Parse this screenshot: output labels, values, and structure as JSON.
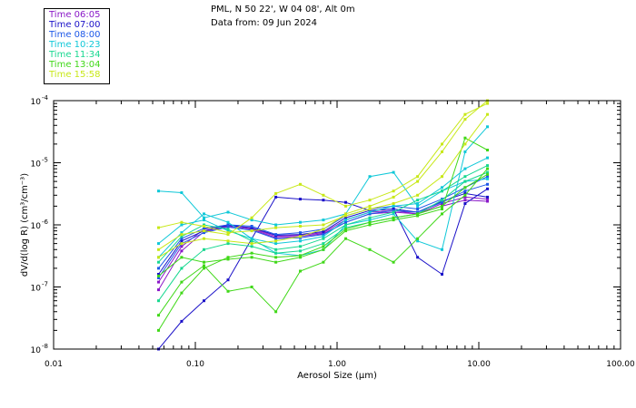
{
  "header": {
    "line1": "PML, N 50 22', W 04 08', Alt 0m",
    "line2": "Data from: 09 Jun 2024"
  },
  "legend": [
    {
      "label": "Time 06:05",
      "color": "#8a18c8"
    },
    {
      "label": "Time 07:00",
      "color": "#1a10c8"
    },
    {
      "label": "Time 08:00",
      "color": "#1e58e8"
    },
    {
      "label": "Time 10:23",
      "color": "#10c8d8"
    },
    {
      "label": "Time 11:34",
      "color": "#18d890"
    },
    {
      "label": "Time 13:04",
      "color": "#40d818"
    },
    {
      "label": "Time 15:58",
      "color": "#c8e818"
    }
  ],
  "chart_data": {
    "type": "line",
    "xlabel": "Aerosol Size (μm)",
    "ylabel": "dV/d(log R) (cm³/cm⁻³)",
    "xscale": "log",
    "yscale": "log",
    "xlim": [
      0.01,
      100
    ],
    "ylim": [
      1e-08,
      0.0001
    ],
    "xticks": [
      {
        "value": 0.01,
        "label": "0.01"
      },
      {
        "value": 0.1,
        "label": "0.10"
      },
      {
        "value": 1,
        "label": "1.00"
      },
      {
        "value": 10,
        "label": "10.00"
      },
      {
        "value": 100,
        "label": "100.00"
      }
    ],
    "yticks": [
      {
        "value": 1e-08,
        "mantissa": "10",
        "exp": "-8"
      },
      {
        "value": 1e-07,
        "mantissa": "10",
        "exp": "-7"
      },
      {
        "value": 1e-06,
        "mantissa": "10",
        "exp": "-6"
      },
      {
        "value": 1e-05,
        "mantissa": "10",
        "exp": "-5"
      },
      {
        "value": 0.0001,
        "mantissa": "10",
        "exp": "-4"
      }
    ],
    "x": [
      0.055,
      0.08,
      0.115,
      0.17,
      0.25,
      0.37,
      0.55,
      0.8,
      1.15,
      1.7,
      2.5,
      3.7,
      5.5,
      8.0,
      11.5
    ],
    "series": [
      {
        "color": "#8a18c8",
        "y": [
          1.2e-07,
          4.5e-07,
          8.5e-07,
          1e-06,
          8.8e-07,
          6.5e-07,
          6.8e-07,
          7.5e-07,
          1.2e-06,
          1.6e-06,
          1.7e-06,
          1.5e-06,
          2.2e-06,
          2.8e-06,
          2.6e-06
        ]
      },
      {
        "color": "#8a18c8",
        "y": [
          9e-08,
          3.8e-07,
          7.8e-07,
          9.5e-07,
          8.5e-07,
          6.2e-07,
          6.5e-07,
          7.2e-07,
          1.1e-06,
          1.5e-06,
          1.6e-06,
          1.5e-06,
          2e-06,
          2.5e-06,
          2.4e-06
        ]
      },
      {
        "color": "#1a10c8",
        "y": [
          1e-08,
          2.8e-08,
          6e-08,
          1.3e-07,
          6e-07,
          2.8e-06,
          2.6e-06,
          2.5e-06,
          2.3e-06,
          1.7e-06,
          1.8e-06,
          3e-07,
          1.6e-07,
          2.2e-06,
          3.8e-06
        ]
      },
      {
        "color": "#1a10c8",
        "y": [
          1.6e-07,
          5.5e-07,
          8e-07,
          9.8e-07,
          9e-07,
          6.8e-07,
          7e-07,
          7.8e-07,
          1.3e-06,
          1.7e-06,
          1.8e-06,
          1.6e-06,
          2.4e-06,
          3.2e-06,
          2.8e-06
        ]
      },
      {
        "color": "#1e58e8",
        "y": [
          1.4e-07,
          5e-07,
          7.5e-07,
          9.2e-07,
          8.2e-07,
          6e-07,
          6.2e-07,
          7e-07,
          1.1e-06,
          1.5e-06,
          1.7e-06,
          1.6e-06,
          2.3e-06,
          3.5e-06,
          4.5e-06
        ]
      },
      {
        "color": "#1e58e8",
        "y": [
          2e-07,
          6e-07,
          8.8e-07,
          1e-06,
          9.5e-07,
          7e-07,
          7.5e-07,
          8.5e-07,
          1.4e-06,
          1.8e-06,
          2e-06,
          1.8e-06,
          2.6e-06,
          4e-06,
          6e-06
        ]
      },
      {
        "color": "#10c8d8",
        "y": [
          3.5e-06,
          3.3e-06,
          1.3e-06,
          1.6e-06,
          1.2e-06,
          1e-06,
          1.1e-06,
          1.2e-06,
          1.5e-06,
          6e-06,
          7e-06,
          2e-06,
          3.5e-06,
          5e-06,
          5.5e-06
        ]
      },
      {
        "color": "#10c8d8",
        "y": [
          3e-07,
          7.5e-07,
          1.5e-06,
          1.1e-06,
          6e-07,
          3.5e-07,
          3.2e-07,
          4e-07,
          1e-06,
          1.2e-06,
          1.5e-06,
          5.5e-07,
          4e-07,
          1.5e-05,
          3.8e-05
        ]
      },
      {
        "color": "#10c8d8",
        "y": [
          5e-07,
          1e-06,
          1.2e-06,
          8e-07,
          6e-07,
          5e-07,
          5.5e-07,
          6.5e-07,
          1.2e-06,
          1.6e-06,
          2e-06,
          2.2e-06,
          4e-06,
          8e-06,
          1.2e-05
        ]
      },
      {
        "color": "#18d890",
        "y": [
          2.5e-07,
          6.5e-07,
          1e-06,
          8.5e-07,
          5.5e-07,
          4e-07,
          4.5e-07,
          6e-07,
          1e-06,
          1.3e-06,
          1.6e-06,
          2.5e-06,
          3.5e-06,
          6e-06,
          9e-06
        ]
      },
      {
        "color": "#18d890",
        "y": [
          6e-08,
          2e-07,
          4e-07,
          5e-07,
          4.5e-07,
          3.5e-07,
          3.8e-07,
          5e-07,
          9e-07,
          1.1e-06,
          1.3e-06,
          1.5e-06,
          2.5e-06,
          5e-06,
          7e-06
        ]
      },
      {
        "color": "#40d818",
        "y": [
          3.5e-08,
          1.2e-07,
          2.2e-07,
          8.5e-08,
          1e-07,
          4e-08,
          1.8e-07,
          2.5e-07,
          6e-07,
          4e-07,
          2.5e-07,
          6e-07,
          1.5e-06,
          3e-06,
          8e-06
        ]
      },
      {
        "color": "#40d818",
        "y": [
          1.5e-07,
          3e-07,
          2.5e-07,
          2.8e-07,
          3e-07,
          2.5e-07,
          3e-07,
          4e-07,
          8e-07,
          1e-06,
          1.2e-06,
          1.4e-06,
          1.8e-06,
          2.5e-05,
          1.6e-05
        ]
      },
      {
        "color": "#40d818",
        "y": [
          2e-08,
          8e-08,
          2e-07,
          3e-07,
          3.5e-07,
          3e-07,
          3.2e-07,
          4.5e-07,
          8.5e-07,
          1.1e-06,
          1.3e-06,
          1.5e-06,
          2e-06,
          4e-06,
          6.5e-06
        ]
      },
      {
        "color": "#c8e818",
        "y": [
          9e-07,
          1.1e-06,
          9.5e-07,
          7.5e-07,
          8e-07,
          9e-07,
          9.5e-07,
          1e-06,
          1.4e-06,
          1.8e-06,
          2.2e-06,
          3e-06,
          6e-06,
          2e-05,
          6e-05
        ]
      },
      {
        "color": "#c8e818",
        "y": [
          3e-07,
          5e-07,
          6e-07,
          5.5e-07,
          5e-07,
          5.5e-07,
          6.5e-07,
          8.5e-07,
          1.5e-06,
          2e-06,
          2.8e-06,
          5e-06,
          1.5e-05,
          5e-05,
          0.0001
        ]
      },
      {
        "color": "#c8e818",
        "y": [
          4e-07,
          7e-07,
          8e-07,
          7e-07,
          1.3e-06,
          3.2e-06,
          4.5e-06,
          3e-06,
          2e-06,
          2.5e-06,
          3.5e-06,
          6e-06,
          2e-05,
          6e-05,
          9e-05
        ]
      }
    ]
  }
}
